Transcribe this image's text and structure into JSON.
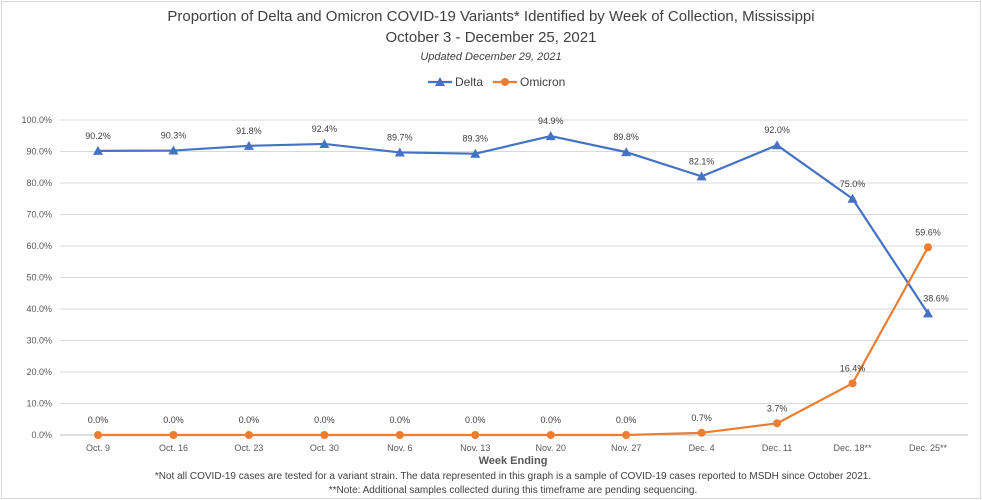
{
  "chart_data": {
    "type": "line",
    "title": "Proportion of Delta and Omicron COVID-19 Variants* Identified by Week of Collection, Mississippi",
    "subtitle": "October 3 - December 25, 2021",
    "updated": "Updated December 29, 2021",
    "xlabel": "Week Ending",
    "ylabel": "",
    "categories": [
      "Oct. 9",
      "Oct. 16",
      "Oct. 23",
      "Oct. 30",
      "Nov. 6",
      "Nov. 13",
      "Nov. 20",
      "Nov. 27",
      "Dec. 4",
      "Dec. 11",
      "Dec. 18**",
      "Dec. 25**"
    ],
    "ylim": [
      0,
      100
    ],
    "yticks": [
      "0.0%",
      "10.0%",
      "20.0%",
      "30.0%",
      "40.0%",
      "50.0%",
      "60.0%",
      "70.0%",
      "80.0%",
      "90.0%",
      "100.0%"
    ],
    "grid": true,
    "legend_position": "top",
    "series": [
      {
        "name": "Delta",
        "color": "#4472C4",
        "marker": "triangle",
        "values": [
          90.2,
          90.3,
          91.8,
          92.4,
          89.7,
          89.3,
          94.9,
          89.8,
          82.1,
          92.0,
          75.0,
          38.6
        ],
        "labels": [
          "90.2%",
          "90.3%",
          "91.8%",
          "92.4%",
          "89.7%",
          "89.3%",
          "94.9%",
          "89.8%",
          "82.1%",
          "92.0%",
          "75.0%",
          "38.6%"
        ]
      },
      {
        "name": "Omicron",
        "color": "#ED7D31",
        "marker": "circle",
        "values": [
          0.0,
          0.0,
          0.0,
          0.0,
          0.0,
          0.0,
          0.0,
          0.0,
          0.7,
          3.7,
          16.4,
          59.6
        ],
        "labels": [
          "0.0%",
          "0.0%",
          "0.0%",
          "0.0%",
          "0.0%",
          "0.0%",
          "0.0%",
          "0.0%",
          "0.7%",
          "3.7%",
          "16.4%",
          "59.6%"
        ]
      }
    ],
    "footnotes": [
      "*Not all COVID-19 cases are tested for a variant strain. The data represented in this graph is a sample of COVID-19 cases reported to MSDH since October 2021.",
      "**Note: Additional samples collected during this timeframe are pending sequencing."
    ]
  }
}
